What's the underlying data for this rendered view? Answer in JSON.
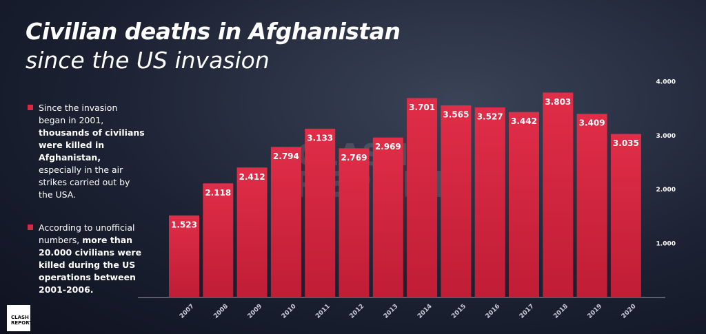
{
  "chart_data": {
    "type": "bar",
    "title": "Civilian deaths in Afghanistan",
    "subtitle": "since the US invasion",
    "categories": [
      "2007",
      "2008",
      "2009",
      "2010",
      "2011",
      "2012",
      "2013",
      "2014",
      "2015",
      "2016",
      "2017",
      "2018",
      "2019",
      "2020"
    ],
    "values": [
      1523,
      2118,
      2412,
      2794,
      3133,
      2769,
      2969,
      3701,
      3565,
      3527,
      3442,
      3803,
      3409,
      3035
    ],
    "value_labels": [
      "1.523",
      "2.118",
      "2.412",
      "2.794",
      "3.133",
      "2.769",
      "2.969",
      "3.701",
      "3.565",
      "3.527",
      "3.442",
      "3.803",
      "3.409",
      "3.035"
    ],
    "color": "#d42a44",
    "ylim": [
      0,
      4000
    ],
    "yticks": [
      {
        "value": 1000,
        "label": "1.000"
      },
      {
        "value": 2000,
        "label": "2.000"
      },
      {
        "value": 3000,
        "label": "3.000"
      },
      {
        "value": 4000,
        "label": "4.000"
      }
    ],
    "grid": false,
    "bullets": [
      [
        {
          "text": "Since the invasion began in 2001, ",
          "bold": false
        },
        {
          "text": "thousands of civilians were killed in Afghanistan,",
          "bold": true
        },
        {
          "text": " especially in the air strikes carried out by the USA.",
          "bold": false
        }
      ],
      [
        {
          "text": "According to unofficial numbers, ",
          "bold": false
        },
        {
          "text": "more than 20.000 civilians were killed during the US operations between 2001-2006.",
          "bold": true
        }
      ]
    ],
    "watermark": [
      "CLASH",
      "REPORT"
    ],
    "logo": [
      "CLASH",
      "REPORT"
    ]
  }
}
